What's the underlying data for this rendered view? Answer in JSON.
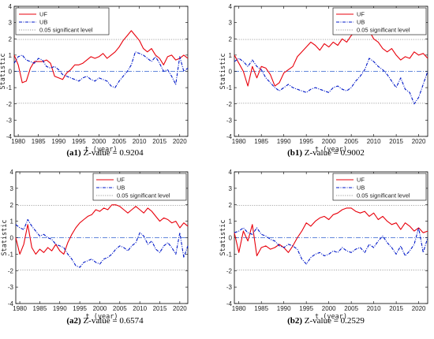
{
  "colors": {
    "uf": "#e8000b",
    "ub": "#0018c8",
    "sig": "#9a9a9a",
    "zero": "#3060d0"
  },
  "chart_data": [
    {
      "type": "line",
      "caption_id": "(a1)",
      "caption_text": "Z-value = 0.9204",
      "ylabel": "Statistic",
      "xlabel": "t (year)",
      "ylim": [
        -4,
        4
      ],
      "xlim": [
        1979,
        2022
      ],
      "xticks": [
        1980,
        1985,
        1990,
        1995,
        2000,
        2005,
        2010,
        2015,
        2020
      ],
      "yticks": [
        -4,
        -3,
        -2,
        -1,
        0,
        1,
        2,
        3,
        4
      ],
      "legend_position": "top-left",
      "legend": [
        "UF",
        "UB",
        "0.05 significant level"
      ],
      "significance": [
        -1.96,
        1.96
      ],
      "x": [
        1979,
        1980,
        1981,
        1982,
        1983,
        1984,
        1985,
        1986,
        1987,
        1988,
        1989,
        1990,
        1991,
        1992,
        1993,
        1994,
        1995,
        1996,
        1997,
        1998,
        1999,
        2000,
        2001,
        2002,
        2003,
        2004,
        2005,
        2006,
        2007,
        2008,
        2009,
        2010,
        2011,
        2012,
        2013,
        2014,
        2015,
        2016,
        2017,
        2018,
        2019,
        2020,
        2021,
        2022
      ],
      "series": [
        {
          "name": "UF",
          "values": [
            1.0,
            0.4,
            -0.7,
            -0.6,
            0.2,
            0.6,
            0.6,
            0.6,
            0.7,
            0.5,
            -0.3,
            -0.4,
            -0.5,
            -0.1,
            0.1,
            0.4,
            0.4,
            0.5,
            0.7,
            0.9,
            0.8,
            0.9,
            1.1,
            0.8,
            1.0,
            1.2,
            1.5,
            1.9,
            2.2,
            2.5,
            2.2,
            1.9,
            1.4,
            1.2,
            1.4,
            1.0,
            0.8,
            0.4,
            0.9,
            1.0,
            0.7,
            0.8,
            1.0,
            0.8
          ]
        },
        {
          "name": "UB",
          "values": [
            0.5,
            0.9,
            1.0,
            0.7,
            0.6,
            0.5,
            0.8,
            0.7,
            0.3,
            0.2,
            0.3,
            0.1,
            -0.2,
            -0.3,
            -0.4,
            -0.5,
            -0.6,
            -0.4,
            -0.3,
            -0.5,
            -0.6,
            -0.4,
            -0.5,
            -0.6,
            -0.9,
            -1.0,
            -0.6,
            -0.3,
            0.0,
            0.4,
            1.2,
            1.1,
            1.0,
            0.8,
            0.6,
            0.9,
            0.5,
            0.0,
            0.1,
            -0.3,
            -0.8,
            0.9,
            0.0,
            0.2
          ]
        }
      ]
    },
    {
      "type": "line",
      "caption_id": "(b1)",
      "caption_text": "Z-value = 0.9002",
      "ylabel": "Statistic",
      "xlabel": "t (year)",
      "ylim": [
        -4,
        4
      ],
      "xlim": [
        1979,
        2022
      ],
      "xticks": [
        1980,
        1985,
        1990,
        1995,
        2000,
        2005,
        2010,
        2015,
        2020
      ],
      "yticks": [
        -4,
        -3,
        -2,
        -1,
        0,
        1,
        2,
        3,
        4
      ],
      "legend_position": "top-right",
      "legend": [
        "UF",
        "UB",
        "0.05 significant level"
      ],
      "significance": [
        -1.96,
        1.96
      ],
      "x": [
        1979,
        1980,
        1981,
        1982,
        1983,
        1984,
        1985,
        1986,
        1987,
        1988,
        1989,
        1990,
        1991,
        1992,
        1993,
        1994,
        1995,
        1996,
        1997,
        1998,
        1999,
        2000,
        2001,
        2002,
        2003,
        2004,
        2005,
        2006,
        2007,
        2008,
        2009,
        2010,
        2011,
        2012,
        2013,
        2014,
        2015,
        2016,
        2017,
        2018,
        2019,
        2020,
        2021,
        2022
      ],
      "series": [
        {
          "name": "UF",
          "values": [
            1.0,
            0.5,
            0.0,
            -0.9,
            0.3,
            -0.4,
            0.3,
            0.2,
            -0.2,
            -0.9,
            -0.7,
            -0.1,
            0.1,
            0.3,
            0.9,
            1.2,
            1.5,
            1.8,
            1.6,
            1.3,
            1.7,
            1.5,
            1.8,
            1.6,
            2.0,
            1.8,
            2.2,
            2.5,
            2.6,
            2.9,
            2.5,
            2.0,
            1.8,
            1.4,
            1.2,
            1.4,
            1.0,
            0.7,
            0.9,
            0.8,
            1.2,
            1.0,
            1.1,
            0.8
          ]
        },
        {
          "name": "UB",
          "values": [
            0.6,
            0.8,
            0.6,
            0.3,
            0.7,
            0.3,
            0.1,
            -0.4,
            -0.7,
            -1.0,
            -1.2,
            -1.0,
            -0.8,
            -1.0,
            -1.1,
            -1.2,
            -1.3,
            -1.1,
            -1.0,
            -1.1,
            -1.2,
            -1.3,
            -1.0,
            -0.9,
            -1.1,
            -1.2,
            -1.0,
            -0.6,
            -0.3,
            0.1,
            0.8,
            0.6,
            0.3,
            0.1,
            -0.2,
            -0.6,
            -1.0,
            -0.4,
            -1.1,
            -1.3,
            -2.0,
            -1.6,
            -0.8,
            0.0
          ]
        }
      ]
    },
    {
      "type": "line",
      "caption_id": "(a2)",
      "caption_text": "Z-value = 0.6574",
      "ylabel": "Statistic",
      "xlabel": "t (year)",
      "ylim": [
        -4,
        4
      ],
      "xlim": [
        1979,
        2022
      ],
      "xticks": [
        1980,
        1985,
        1990,
        1995,
        2000,
        2005,
        2010,
        2015,
        2020
      ],
      "yticks": [
        -4,
        -3,
        -2,
        -1,
        0,
        1,
        2,
        3,
        4
      ],
      "legend_position": "top-right",
      "legend": [
        "UF",
        "UB",
        "0.05 significant level"
      ],
      "significance": [
        -1.96,
        1.96
      ],
      "x": [
        1979,
        1980,
        1981,
        1982,
        1983,
        1984,
        1985,
        1986,
        1987,
        1988,
        1989,
        1990,
        1991,
        1992,
        1993,
        1994,
        1995,
        1996,
        1997,
        1998,
        1999,
        2000,
        2001,
        2002,
        2003,
        2004,
        2005,
        2006,
        2007,
        2008,
        2009,
        2010,
        2011,
        2012,
        2013,
        2014,
        2015,
        2016,
        2017,
        2018,
        2019,
        2020,
        2021,
        2022
      ],
      "series": [
        {
          "name": "UF",
          "values": [
            0.0,
            -1.0,
            -0.4,
            0.8,
            -0.6,
            -1.0,
            -0.7,
            -0.9,
            -0.6,
            -0.8,
            -0.4,
            -0.8,
            -1.0,
            -0.3,
            0.2,
            0.6,
            0.9,
            1.1,
            1.3,
            1.4,
            1.7,
            1.6,
            1.8,
            1.7,
            2.0,
            2.0,
            1.9,
            1.7,
            1.5,
            1.7,
            1.9,
            1.7,
            1.5,
            1.8,
            1.6,
            1.3,
            1.0,
            1.2,
            1.1,
            0.9,
            1.0,
            0.6,
            0.9,
            0.7
          ]
        },
        {
          "name": "UB",
          "values": [
            0.8,
            0.6,
            0.5,
            1.1,
            0.7,
            0.4,
            0.1,
            0.2,
            0.0,
            -0.1,
            -0.4,
            -0.5,
            -0.6,
            -1.0,
            -1.3,
            -1.7,
            -1.8,
            -1.5,
            -1.4,
            -1.3,
            -1.5,
            -1.6,
            -1.3,
            -1.2,
            -1.0,
            -0.7,
            -0.5,
            -0.6,
            -0.8,
            -0.5,
            -0.3,
            0.3,
            0.1,
            -0.4,
            -0.2,
            -0.7,
            -0.9,
            -0.5,
            -0.3,
            -0.6,
            -1.0,
            0.3,
            -1.2,
            -0.5
          ]
        }
      ]
    },
    {
      "type": "line",
      "caption_id": "(b2)",
      "caption_text": "Z-value = 0.2529",
      "ylabel": "Statistic",
      "xlabel": "t (year)",
      "ylim": [
        -4,
        4
      ],
      "xlim": [
        1979,
        2022
      ],
      "xticks": [
        1980,
        1985,
        1990,
        1995,
        2000,
        2005,
        2010,
        2015,
        2020
      ],
      "yticks": [
        -4,
        -3,
        -2,
        -1,
        0,
        1,
        2,
        3,
        4
      ],
      "legend_position": "top-right",
      "legend": [
        "UF",
        "UB",
        "0.05 significant level"
      ],
      "significance": [
        -1.96,
        1.96
      ],
      "x": [
        1979,
        1980,
        1981,
        1982,
        1983,
        1984,
        1985,
        1986,
        1987,
        1988,
        1989,
        1990,
        1991,
        1992,
        1993,
        1994,
        1995,
        1996,
        1997,
        1998,
        1999,
        2000,
        2001,
        2002,
        2003,
        2004,
        2005,
        2006,
        2007,
        2008,
        2009,
        2010,
        2011,
        2012,
        2013,
        2014,
        2015,
        2016,
        2017,
        2018,
        2019,
        2020,
        2021,
        2022
      ],
      "series": [
        {
          "name": "UF",
          "values": [
            0.3,
            -0.9,
            0.4,
            -0.2,
            0.8,
            -1.1,
            -0.6,
            -0.5,
            -0.7,
            -0.6,
            -0.4,
            -0.6,
            -0.9,
            -0.5,
            0.0,
            0.4,
            0.9,
            0.7,
            1.0,
            1.2,
            1.3,
            1.1,
            1.4,
            1.5,
            1.7,
            1.8,
            1.8,
            1.6,
            1.5,
            1.6,
            1.3,
            1.5,
            1.1,
            1.3,
            1.0,
            0.8,
            0.9,
            0.5,
            0.9,
            0.7,
            0.4,
            0.6,
            0.3,
            0.4
          ]
        },
        {
          "name": "UB",
          "values": [
            0.3,
            0.4,
            0.6,
            0.3,
            0.2,
            0.6,
            0.2,
            0.1,
            -0.1,
            -0.2,
            -0.5,
            -0.6,
            -0.4,
            -0.5,
            -0.7,
            -1.3,
            -1.6,
            -1.2,
            -1.0,
            -0.9,
            -1.1,
            -1.0,
            -0.8,
            -0.9,
            -0.6,
            -0.8,
            -0.9,
            -0.7,
            -0.6,
            -0.9,
            -0.4,
            -0.6,
            -0.2,
            0.1,
            -0.3,
            -0.6,
            -1.0,
            -0.5,
            -1.1,
            -0.8,
            -0.4,
            0.6,
            -0.9,
            0.0
          ]
        }
      ]
    }
  ]
}
